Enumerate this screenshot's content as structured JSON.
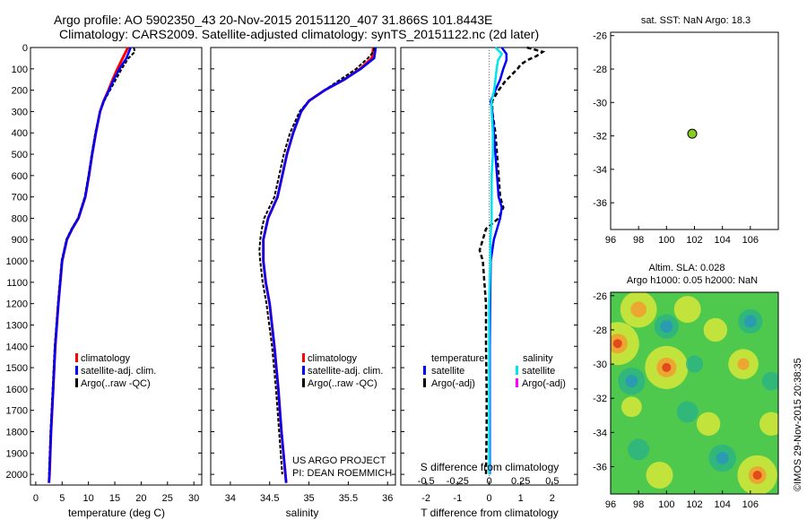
{
  "title": {
    "line1": "Argo profile: AO 5902350_43 20-Nov-2015 20151120_407 31.866S 101.8443E",
    "line2": "Climatology: CARS2009. Satellite-adjusted climatology: synTS_20151122.nc (2d later)"
  },
  "colors": {
    "climatology": "#ff0000",
    "satellite": "#0000ff",
    "argo": "#000000",
    "sat_salinity": "#00e5ee",
    "argo_salinity": "#ff00ff",
    "dot": "#88cc22"
  },
  "depth_axis": {
    "ylim": [
      0,
      2050
    ],
    "ticks": [
      0,
      100,
      200,
      300,
      400,
      500,
      600,
      700,
      800,
      900,
      1000,
      1100,
      1200,
      1300,
      1400,
      1500,
      1600,
      1700,
      1800,
      1900,
      2000
    ]
  },
  "chart_data": [
    {
      "id": "temperature",
      "type": "line",
      "xlabel": "temperature (deg C)",
      "xlim": [
        -1,
        31.5
      ],
      "xticks": [
        0,
        5,
        10,
        15,
        20,
        25,
        30
      ],
      "ylim": [
        0,
        2050
      ],
      "legend": [
        "climatology",
        "satellite-adj. clim.",
        "Argo(..raw -QC)"
      ],
      "series": [
        {
          "name": "climatology",
          "depth": [
            0,
            50,
            100,
            150,
            200,
            250,
            300,
            400,
            500,
            600,
            700,
            800,
            850,
            900,
            1000,
            1200,
            1400,
            1600,
            1800,
            2000,
            2040
          ],
          "values": [
            17.5,
            16.5,
            15.5,
            14.6,
            13.8,
            12.9,
            12.2,
            11.4,
            10.7,
            10.1,
            9.4,
            8.1,
            6.9,
            5.9,
            5.0,
            4.3,
            3.7,
            3.3,
            2.9,
            2.6,
            2.5
          ]
        },
        {
          "name": "satellite",
          "depth": [
            0,
            50,
            100,
            150,
            200,
            250,
            300,
            400,
            500,
            600,
            700,
            800,
            850,
            900,
            1000,
            1200,
            1400,
            1600,
            1800,
            2000,
            2040
          ],
          "values": [
            18.0,
            17.2,
            15.9,
            14.8,
            13.9,
            12.9,
            12.2,
            11.4,
            10.7,
            10.1,
            9.4,
            8.1,
            6.9,
            5.9,
            5.0,
            4.3,
            3.7,
            3.3,
            2.9,
            2.6,
            2.5
          ]
        },
        {
          "name": "argo",
          "depth": [
            0,
            20,
            50,
            100,
            150,
            200,
            250,
            300,
            400,
            500,
            600,
            700,
            800,
            850,
            900,
            1000,
            1200,
            1400,
            1600,
            1800,
            2000
          ],
          "values": [
            18.6,
            18.8,
            17.6,
            16.3,
            15.2,
            14.1,
            13.0,
            12.2,
            11.3,
            10.6,
            10.0,
            9.3,
            8.0,
            6.8,
            5.8,
            4.9,
            4.2,
            3.6,
            3.2,
            2.8,
            2.5
          ]
        }
      ]
    },
    {
      "id": "salinity",
      "type": "line",
      "xlabel": "salinity",
      "xlim": [
        33.75,
        36.1
      ],
      "xticks": [
        34,
        34.5,
        35,
        35.5,
        36
      ],
      "xtick_labels": [
        "34",
        "34.5",
        "35",
        "35.5",
        "36"
      ],
      "ylim": [
        0,
        2050
      ],
      "legend": [
        "climatology",
        "satellite-adj. clim.",
        "Argo(..raw -QC)"
      ],
      "series": [
        {
          "name": "climatology",
          "depth": [
            0,
            50,
            100,
            150,
            200,
            250,
            300,
            400,
            500,
            600,
            700,
            800,
            900,
            1000,
            1100,
            1200,
            1400,
            1600,
            1800,
            2000,
            2040
          ],
          "values": [
            35.82,
            35.8,
            35.65,
            35.45,
            35.2,
            35.0,
            34.9,
            34.8,
            34.72,
            34.66,
            34.6,
            34.48,
            34.42,
            34.42,
            34.45,
            34.5,
            34.56,
            34.61,
            34.65,
            34.7,
            34.71
          ]
        },
        {
          "name": "satellite",
          "depth": [
            0,
            50,
            100,
            150,
            200,
            250,
            300,
            400,
            500,
            600,
            700,
            800,
            900,
            1000,
            1100,
            1200,
            1400,
            1600,
            1800,
            2000,
            2040
          ],
          "values": [
            35.85,
            35.83,
            35.66,
            35.45,
            35.2,
            35.0,
            34.9,
            34.8,
            34.72,
            34.66,
            34.6,
            34.48,
            34.42,
            34.42,
            34.45,
            34.5,
            34.56,
            34.61,
            34.65,
            34.7,
            34.71
          ]
        },
        {
          "name": "argo",
          "depth": [
            0,
            20,
            50,
            100,
            150,
            200,
            250,
            300,
            400,
            500,
            600,
            700,
            800,
            850,
            900,
            950,
            1000,
            1100,
            1200,
            1400,
            1600,
            1800,
            2000
          ],
          "values": [
            35.83,
            35.82,
            35.75,
            35.6,
            35.4,
            35.2,
            35.0,
            34.88,
            34.76,
            34.68,
            34.62,
            34.56,
            34.43,
            34.4,
            34.38,
            34.37,
            34.38,
            34.41,
            34.46,
            34.53,
            34.58,
            34.62,
            34.66
          ]
        }
      ]
    },
    {
      "id": "differences",
      "type": "line",
      "xlabel": "T difference from climatology",
      "xlabel_top": "S difference from climatology",
      "xlim": [
        -2.8,
        2.8
      ],
      "xticks": [
        -2,
        -1,
        0,
        1,
        2
      ],
      "xticks_top": [
        -0.5,
        -0.25,
        0,
        0.25,
        0.5
      ],
      "xticks_top_labels": [
        "-0.5",
        "-0.25",
        "0",
        "0.25",
        "0.5"
      ],
      "ylim": [
        0,
        2050
      ],
      "legend_titles": [
        "temperature",
        "salinity"
      ],
      "legend": [
        "satellite",
        "Argo(-adj)",
        "satellite",
        "Argo(-adj)"
      ],
      "series": [
        {
          "name": "T satellite",
          "depth": [
            0,
            30,
            60,
            100,
            150,
            200,
            250,
            300,
            400,
            500,
            600,
            700,
            750,
            800,
            850,
            900,
            1000,
            1200,
            1400,
            1600,
            1800,
            2000
          ],
          "values": [
            0.4,
            0.55,
            0.55,
            0.45,
            0.35,
            0.2,
            0.05,
            0.1,
            0.15,
            0.2,
            0.25,
            0.3,
            0.4,
            0.35,
            0.25,
            0.15,
            0.05,
            0.03,
            0.02,
            0.02,
            0.02,
            0.02
          ]
        },
        {
          "name": "S satellite",
          "depth": [
            0,
            30,
            60,
            100,
            150,
            200,
            250,
            300,
            400,
            500,
            600,
            700,
            800,
            900,
            1000,
            1200,
            1400,
            1600,
            1800,
            2000
          ],
          "values": [
            0.05,
            0.1,
            0.07,
            0.06,
            0.05,
            0.04,
            0.02,
            0.02,
            0.03,
            0.03,
            0.02,
            0.02,
            0.02,
            0.01,
            0.01,
            0.0,
            0.0,
            0.0,
            0.0,
            0.0
          ]
        },
        {
          "name": "T Argo",
          "depth": [
            0,
            20,
            40,
            60,
            80,
            100,
            130,
            160,
            200,
            250,
            300,
            400,
            500,
            600,
            700,
            750,
            800,
            850,
            900,
            950,
            1000,
            1100,
            1200,
            1400,
            1600,
            1800,
            2000
          ],
          "values": [
            1.2,
            1.7,
            1.5,
            1.2,
            1.0,
            0.9,
            0.7,
            0.5,
            0.3,
            0.1,
            0.1,
            0.2,
            0.25,
            0.3,
            0.35,
            0.45,
            0.3,
            -0.1,
            -0.2,
            -0.3,
            -0.2,
            -0.15,
            -0.1,
            -0.1,
            -0.08,
            -0.08,
            -0.1
          ]
        }
      ]
    },
    {
      "id": "position_map",
      "type": "scatter",
      "title": "sat. SST: NaN Argo: 18.3",
      "xlim": [
        96,
        108
      ],
      "xticks": [
        96,
        98,
        100,
        102,
        104,
        106
      ],
      "ylim": [
        -37.6,
        -25.8
      ],
      "yticks": [
        -26,
        -28,
        -30,
        -32,
        -34,
        -36
      ],
      "points": [
        {
          "lon": 101.84,
          "lat": -31.87
        }
      ]
    },
    {
      "id": "sla_map",
      "type": "heatmap",
      "title_line1": "Altim. SLA: 0.028",
      "title_line2": "Argo h1000: 0.05 h2000: NaN",
      "xlim": [
        96,
        108
      ],
      "xticks": [
        96,
        98,
        100,
        102,
        104,
        106
      ],
      "ylim": [
        -37.6,
        -25.8
      ],
      "yticks": [
        -26,
        -28,
        -30,
        -32,
        -34,
        -36
      ],
      "blobs": [
        {
          "lon": 98.0,
          "lat": -26.8,
          "v": 0.8
        },
        {
          "lon": 96.5,
          "lat": -28.8,
          "v": 1.0
        },
        {
          "lon": 100.0,
          "lat": -30.2,
          "v": 1.0
        },
        {
          "lon": 101.5,
          "lat": -26.8,
          "v": 0.5
        },
        {
          "lon": 105.5,
          "lat": -30.0,
          "v": 0.6
        },
        {
          "lon": 106.5,
          "lat": -36.5,
          "v": 0.9
        },
        {
          "lon": 103.0,
          "lat": -33.5,
          "v": 0.4
        },
        {
          "lon": 99.5,
          "lat": -36.5,
          "v": 0.5
        },
        {
          "lon": 107.5,
          "lat": -33.5,
          "v": 0.4
        },
        {
          "lon": 103.5,
          "lat": -28.0,
          "v": 0.4
        },
        {
          "lon": 97.5,
          "lat": -32.5,
          "v": 0.3
        },
        {
          "lon": 100.0,
          "lat": -27.8,
          "v": -0.6
        },
        {
          "lon": 97.5,
          "lat": -31.0,
          "v": -0.7
        },
        {
          "lon": 101.5,
          "lat": -32.8,
          "v": -0.5
        },
        {
          "lon": 104.0,
          "lat": -35.5,
          "v": -0.7
        },
        {
          "lon": 106.0,
          "lat": -27.5,
          "v": -0.6
        },
        {
          "lon": 102.0,
          "lat": -30.0,
          "v": -0.35
        },
        {
          "lon": 98.0,
          "lat": -35.0,
          "v": -0.5
        },
        {
          "lon": 107.5,
          "lat": -31.0,
          "v": -0.4
        }
      ]
    }
  ],
  "credits": {
    "line1": "US ARGO PROJECT",
    "line2": "PI: DEAN ROEMMICH"
  },
  "stamp": "©IMOS 29-Nov-2015 20:38:35"
}
